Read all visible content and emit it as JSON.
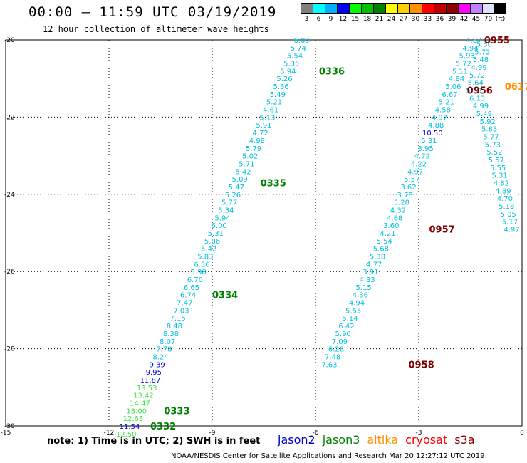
{
  "header": {
    "title": "00:00 — 11:59 UTC 03/19/2019",
    "subtitle": "12 hour collection of altimeter wave heights"
  },
  "color_scale": {
    "labels": [
      "3",
      "6",
      "9",
      "12",
      "15",
      "18",
      "21",
      "24",
      "27",
      "30",
      "33",
      "36",
      "39",
      "42",
      "45",
      "70",
      "(ft)"
    ],
    "colors": [
      "#808080",
      "#00ffff",
      "#00b0ff",
      "#0000ff",
      "#00ff00",
      "#00c000",
      "#008000",
      "#ffff00",
      "#ffd000",
      "#ff9000",
      "#ff0000",
      "#c00000",
      "#900000",
      "#ff00ff",
      "#c080ff",
      "#e0e0ff",
      "#000000"
    ]
  },
  "note": "note: 1) Time is in UTC; 2) SWH is in feet",
  "legend": [
    {
      "name": "jason2",
      "color": "#0000cc"
    },
    {
      "name": "jason3",
      "color": "#008000"
    },
    {
      "name": "altika",
      "color": "#ff9000"
    },
    {
      "name": "cryosat",
      "color": "#ff0000"
    },
    {
      "name": "s3a",
      "color": "#800000"
    }
  ],
  "footer": "NOAA/NESDIS Center for Satellite Applications and Research    Mar 20 12:27:12 UTC 2019",
  "chart_data": {
    "type": "scatter",
    "xlim": [
      -15,
      0
    ],
    "ylim": [
      -30,
      -20
    ],
    "x_ticks": [
      "-15",
      "-12",
      "-9",
      "-6",
      "-3",
      "0"
    ],
    "y_ticks": [
      "-20",
      "-22",
      "-24",
      "-26",
      "-28",
      "-30"
    ],
    "grid": true,
    "series": [
      {
        "track": "A",
        "points": [
          {
            "lon": -6.4,
            "lat": -20.0,
            "v": "6.09",
            "c": "#00c0e0"
          },
          {
            "lon": -6.5,
            "lat": -20.2,
            "v": "5.74",
            "c": "#00c0e0"
          },
          {
            "lon": -6.6,
            "lat": -20.4,
            "v": "5.54",
            "c": "#00c0e0"
          },
          {
            "lon": -6.7,
            "lat": -20.6,
            "v": "5.35",
            "c": "#00c0e0"
          },
          {
            "lon": -6.8,
            "lat": -20.8,
            "v": "5.94",
            "c": "#00c0e0"
          },
          {
            "lon": -6.9,
            "lat": -21.0,
            "v": "5.26",
            "c": "#00c0e0"
          },
          {
            "lon": -7.0,
            "lat": -21.2,
            "v": "5.36",
            "c": "#00c0e0"
          },
          {
            "lon": -7.1,
            "lat": -21.4,
            "v": "5.49",
            "c": "#00c0e0"
          },
          {
            "lon": -7.2,
            "lat": -21.6,
            "v": "5.21",
            "c": "#00c0e0"
          },
          {
            "lon": -7.3,
            "lat": -21.8,
            "v": "4.61",
            "c": "#00c0e0"
          },
          {
            "lon": -7.4,
            "lat": -22.0,
            "v": "5.13",
            "c": "#00c0e0"
          },
          {
            "lon": -7.5,
            "lat": -22.2,
            "v": "5.91",
            "c": "#00c0e0"
          },
          {
            "lon": -7.6,
            "lat": -22.4,
            "v": "4.72",
            "c": "#00c0e0"
          },
          {
            "lon": -7.7,
            "lat": -22.6,
            "v": "4.98",
            "c": "#00c0e0"
          },
          {
            "lon": -7.8,
            "lat": -22.8,
            "v": "5.79",
            "c": "#00c0e0"
          },
          {
            "lon": -7.9,
            "lat": -23.0,
            "v": "5.02",
            "c": "#00c0e0"
          },
          {
            "lon": -8.0,
            "lat": -23.2,
            "v": "5.71",
            "c": "#00c0e0"
          },
          {
            "lon": -8.1,
            "lat": -23.4,
            "v": "5.42",
            "c": "#00c0e0"
          },
          {
            "lon": -8.2,
            "lat": -23.6,
            "v": "5.09",
            "c": "#00c0e0"
          },
          {
            "lon": -8.3,
            "lat": -23.8,
            "v": "5.47",
            "c": "#00c0e0"
          },
          {
            "lon": -8.4,
            "lat": -24.0,
            "v": "5.26",
            "c": "#00c0e0"
          },
          {
            "lon": -8.5,
            "lat": -24.2,
            "v": "5.77",
            "c": "#00c0e0"
          },
          {
            "lon": -8.6,
            "lat": -24.4,
            "v": "5.34",
            "c": "#00c0e0"
          },
          {
            "lon": -8.7,
            "lat": -24.6,
            "v": "5.94",
            "c": "#00c0e0"
          },
          {
            "lon": -8.8,
            "lat": -24.8,
            "v": "6.00",
            "c": "#00c0e0"
          },
          {
            "lon": -8.9,
            "lat": -25.0,
            "v": "5.31",
            "c": "#00c0e0"
          },
          {
            "lon": -9.0,
            "lat": -25.2,
            "v": "5.86",
            "c": "#00c0e0"
          },
          {
            "lon": -9.1,
            "lat": -25.4,
            "v": "5.42",
            "c": "#00c0e0"
          },
          {
            "lon": -9.2,
            "lat": -25.6,
            "v": "5.83",
            "c": "#00c0e0"
          },
          {
            "lon": -9.3,
            "lat": -25.8,
            "v": "6.36",
            "c": "#00c0e0"
          },
          {
            "lon": -9.4,
            "lat": -26.0,
            "v": "5.98",
            "c": "#00c0e0"
          },
          {
            "lon": -9.5,
            "lat": -26.2,
            "v": "6.70",
            "c": "#00c0e0"
          },
          {
            "lon": -9.6,
            "lat": -26.4,
            "v": "6.65",
            "c": "#00c0e0"
          },
          {
            "lon": -9.7,
            "lat": -26.6,
            "v": "6.74",
            "c": "#00c0e0"
          },
          {
            "lon": -9.8,
            "lat": -26.8,
            "v": "7.47",
            "c": "#00c0e0"
          },
          {
            "lon": -9.9,
            "lat": -27.0,
            "v": "7.03",
            "c": "#00c0e0"
          },
          {
            "lon": -10.0,
            "lat": -27.2,
            "v": "7.15",
            "c": "#00c0e0"
          },
          {
            "lon": -10.1,
            "lat": -27.4,
            "v": "8.48",
            "c": "#00c0e0"
          },
          {
            "lon": -10.2,
            "lat": -27.6,
            "v": "8.38",
            "c": "#00c0e0"
          },
          {
            "lon": -10.3,
            "lat": -27.8,
            "v": "8.07",
            "c": "#00c0e0"
          },
          {
            "lon": -10.4,
            "lat": -28.0,
            "v": "7.78",
            "c": "#00c0e0"
          },
          {
            "lon": -10.5,
            "lat": -28.2,
            "v": "8.24",
            "c": "#00c0e0"
          },
          {
            "lon": -10.6,
            "lat": -28.4,
            "v": "9.39",
            "c": "#0000cc"
          },
          {
            "lon": -10.7,
            "lat": -28.6,
            "v": "9.95",
            "c": "#0000cc"
          },
          {
            "lon": -10.8,
            "lat": -28.8,
            "v": "11.87",
            "c": "#0000cc"
          },
          {
            "lon": -10.9,
            "lat": -29.0,
            "v": "13.53",
            "c": "#40e040"
          },
          {
            "lon": -11.0,
            "lat": -29.2,
            "v": "13.42",
            "c": "#40e040"
          },
          {
            "lon": -11.1,
            "lat": -29.4,
            "v": "14.47",
            "c": "#40e040"
          },
          {
            "lon": -11.2,
            "lat": -29.6,
            "v": "13.00",
            "c": "#40e040"
          },
          {
            "lon": -11.3,
            "lat": -29.8,
            "v": "12.63",
            "c": "#40e040"
          },
          {
            "lon": -11.4,
            "lat": -30.0,
            "v": "11.54",
            "c": "#0000cc"
          },
          {
            "lon": -11.5,
            "lat": -30.2,
            "v": "12.50",
            "c": "#40e040"
          }
        ]
      },
      {
        "track": "B",
        "points": [
          {
            "lon": -1.4,
            "lat": -20.0,
            "v": "4.87",
            "c": "#00c0e0"
          },
          {
            "lon": -1.5,
            "lat": -20.2,
            "v": "4.94",
            "c": "#00c0e0"
          },
          {
            "lon": -1.6,
            "lat": -20.4,
            "v": "5.93",
            "c": "#00c0e0"
          },
          {
            "lon": -1.7,
            "lat": -20.6,
            "v": "5.72",
            "c": "#00c0e0"
          },
          {
            "lon": -1.8,
            "lat": -20.8,
            "v": "5.11",
            "c": "#00c0e0"
          },
          {
            "lon": -1.9,
            "lat": -21.0,
            "v": "4.84",
            "c": "#00c0e0"
          },
          {
            "lon": -2.0,
            "lat": -21.2,
            "v": "5.06",
            "c": "#00c0e0"
          },
          {
            "lon": -2.1,
            "lat": -21.4,
            "v": "6.67",
            "c": "#00c0e0"
          },
          {
            "lon": -2.2,
            "lat": -21.6,
            "v": "5.21",
            "c": "#00c0e0"
          },
          {
            "lon": -2.3,
            "lat": -21.8,
            "v": "4.58",
            "c": "#00c0e0"
          },
          {
            "lon": -2.4,
            "lat": -22.0,
            "v": "4.97",
            "c": "#00c0e0"
          },
          {
            "lon": -2.5,
            "lat": -22.2,
            "v": "4.88",
            "c": "#00c0e0"
          },
          {
            "lon": -2.6,
            "lat": -22.4,
            "v": "10.50",
            "c": "#0000cc"
          },
          {
            "lon": -2.7,
            "lat": -22.6,
            "v": "5.31",
            "c": "#00c0e0"
          },
          {
            "lon": -2.8,
            "lat": -22.8,
            "v": "3.95",
            "c": "#00c0e0"
          },
          {
            "lon": -2.9,
            "lat": -23.0,
            "v": "4.72",
            "c": "#00c0e0"
          },
          {
            "lon": -3.0,
            "lat": -23.2,
            "v": "4.22",
            "c": "#00c0e0"
          },
          {
            "lon": -3.1,
            "lat": -23.4,
            "v": "4.97",
            "c": "#00c0e0"
          },
          {
            "lon": -3.2,
            "lat": -23.6,
            "v": "5.57",
            "c": "#00c0e0"
          },
          {
            "lon": -3.3,
            "lat": -23.8,
            "v": "3.62",
            "c": "#00c0e0"
          },
          {
            "lon": -3.4,
            "lat": -24.0,
            "v": "3.78",
            "c": "#00c0e0"
          },
          {
            "lon": -3.5,
            "lat": -24.2,
            "v": "3.20",
            "c": "#00c0e0"
          },
          {
            "lon": -3.6,
            "lat": -24.4,
            "v": "4.32",
            "c": "#00c0e0"
          },
          {
            "lon": -3.7,
            "lat": -24.6,
            "v": "4.68",
            "c": "#00c0e0"
          },
          {
            "lon": -3.8,
            "lat": -24.8,
            "v": "3.60",
            "c": "#00c0e0"
          },
          {
            "lon": -3.9,
            "lat": -25.0,
            "v": "4.21",
            "c": "#00c0e0"
          },
          {
            "lon": -4.0,
            "lat": -25.2,
            "v": "5.54",
            "c": "#00c0e0"
          },
          {
            "lon": -4.1,
            "lat": -25.4,
            "v": "5.68",
            "c": "#00c0e0"
          },
          {
            "lon": -4.2,
            "lat": -25.6,
            "v": "5.38",
            "c": "#00c0e0"
          },
          {
            "lon": -4.3,
            "lat": -25.8,
            "v": "4.77",
            "c": "#00c0e0"
          },
          {
            "lon": -4.4,
            "lat": -26.0,
            "v": "3.91",
            "c": "#00c0e0"
          },
          {
            "lon": -4.5,
            "lat": -26.2,
            "v": "4.83",
            "c": "#00c0e0"
          },
          {
            "lon": -4.6,
            "lat": -26.4,
            "v": "5.15",
            "c": "#00c0e0"
          },
          {
            "lon": -4.7,
            "lat": -26.6,
            "v": "4.36",
            "c": "#00c0e0"
          },
          {
            "lon": -4.8,
            "lat": -26.8,
            "v": "4.94",
            "c": "#00c0e0"
          },
          {
            "lon": -4.9,
            "lat": -27.0,
            "v": "5.55",
            "c": "#00c0e0"
          },
          {
            "lon": -5.0,
            "lat": -27.2,
            "v": "5.14",
            "c": "#00c0e0"
          },
          {
            "lon": -5.1,
            "lat": -27.4,
            "v": "6.42",
            "c": "#00c0e0"
          },
          {
            "lon": -5.2,
            "lat": -27.6,
            "v": "5.90",
            "c": "#00c0e0"
          },
          {
            "lon": -5.3,
            "lat": -27.8,
            "v": "7.09",
            "c": "#00c0e0"
          },
          {
            "lon": -5.4,
            "lat": -28.0,
            "v": "6.28",
            "c": "#00c0e0"
          },
          {
            "lon": -5.5,
            "lat": -28.2,
            "v": "7.48",
            "c": "#00c0e0"
          },
          {
            "lon": -5.6,
            "lat": -28.4,
            "v": "7.63",
            "c": "#00c0e0"
          }
        ]
      },
      {
        "track": "C",
        "points": [
          {
            "lon": -1.1,
            "lat": -20.1,
            "v": "5.30",
            "c": "#00c0e0"
          },
          {
            "lon": -1.15,
            "lat": -20.3,
            "v": "5.72",
            "c": "#00c0e0"
          },
          {
            "lon": -1.2,
            "lat": -20.5,
            "v": "5.48",
            "c": "#00c0e0"
          },
          {
            "lon": -1.25,
            "lat": -20.7,
            "v": "4.99",
            "c": "#00c0e0"
          },
          {
            "lon": -1.3,
            "lat": -20.9,
            "v": "5.72",
            "c": "#00c0e0"
          },
          {
            "lon": -1.35,
            "lat": -21.1,
            "v": "5.64",
            "c": "#00c0e0"
          },
          {
            "lon": -1.4,
            "lat": -21.3,
            "v": "5.33",
            "c": "#00c0e0"
          },
          {
            "lon": -1.3,
            "lat": -21.5,
            "v": "6.13",
            "c": "#00c0e0"
          },
          {
            "lon": -1.2,
            "lat": -21.7,
            "v": "4.99",
            "c": "#00c0e0"
          },
          {
            "lon": -1.1,
            "lat": -21.9,
            "v": "5.49",
            "c": "#00c0e0"
          },
          {
            "lon": -1.0,
            "lat": -22.1,
            "v": "5.92",
            "c": "#00c0e0"
          },
          {
            "lon": -0.95,
            "lat": -22.3,
            "v": "5.85",
            "c": "#00c0e0"
          },
          {
            "lon": -0.9,
            "lat": -22.5,
            "v": "5.77",
            "c": "#00c0e0"
          },
          {
            "lon": -0.85,
            "lat": -22.7,
            "v": "5.73",
            "c": "#00c0e0"
          },
          {
            "lon": -0.8,
            "lat": -22.9,
            "v": "5.52",
            "c": "#00c0e0"
          },
          {
            "lon": -0.75,
            "lat": -23.1,
            "v": "5.57",
            "c": "#00c0e0"
          },
          {
            "lon": -0.7,
            "lat": -23.3,
            "v": "5.55",
            "c": "#00c0e0"
          },
          {
            "lon": -0.65,
            "lat": -23.5,
            "v": "5.31",
            "c": "#00c0e0"
          },
          {
            "lon": -0.6,
            "lat": -23.7,
            "v": "4.82",
            "c": "#00c0e0"
          },
          {
            "lon": -0.55,
            "lat": -23.9,
            "v": "4.89",
            "c": "#00c0e0"
          },
          {
            "lon": -0.5,
            "lat": -24.1,
            "v": "4.70",
            "c": "#00c0e0"
          },
          {
            "lon": -0.45,
            "lat": -24.3,
            "v": "5.18",
            "c": "#00c0e0"
          },
          {
            "lon": -0.4,
            "lat": -24.5,
            "v": "5.05",
            "c": "#00c0e0"
          },
          {
            "lon": -0.35,
            "lat": -24.7,
            "v": "5.17",
            "c": "#00c0e0"
          },
          {
            "lon": -0.3,
            "lat": -24.9,
            "v": "4.97",
            "c": "#00c0e0"
          }
        ]
      }
    ],
    "pass_labels": [
      {
        "lon": -5.9,
        "lat": -20.8,
        "text": "0336",
        "c": "#008000"
      },
      {
        "lon": -7.6,
        "lat": -23.7,
        "text": "0335",
        "c": "#008000"
      },
      {
        "lon": -9.0,
        "lat": -26.6,
        "text": "0334",
        "c": "#008000"
      },
      {
        "lon": -10.4,
        "lat": -29.6,
        "text": "0333",
        "c": "#008000"
      },
      {
        "lon": -10.8,
        "lat": -30.0,
        "text": "0332",
        "c": "#008000"
      },
      {
        "lon": -1.1,
        "lat": -20.0,
        "text": "0955",
        "c": "#800000"
      },
      {
        "lon": -1.6,
        "lat": -21.3,
        "text": "0956",
        "c": "#800000"
      },
      {
        "lon": -0.5,
        "lat": -21.2,
        "text": "0617",
        "c": "#ff9000"
      },
      {
        "lon": -2.7,
        "lat": -24.9,
        "text": "0957",
        "c": "#800000"
      },
      {
        "lon": -3.3,
        "lat": -28.4,
        "text": "0958",
        "c": "#800000"
      }
    ]
  }
}
